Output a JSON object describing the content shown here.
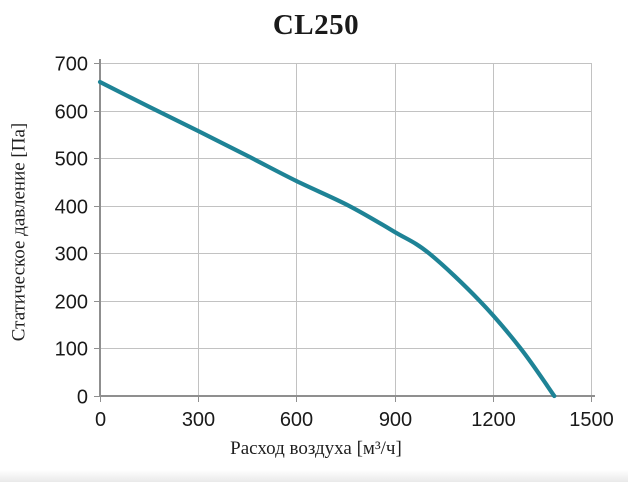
{
  "chart_data": {
    "type": "line",
    "title": "CL250",
    "xlabel": "Расход воздуха [м³/ч]",
    "ylabel": "Статическое давление [Па]",
    "xlim": [
      0,
      1500
    ],
    "ylim": [
      0,
      700
    ],
    "x_ticks": [
      0,
      300,
      600,
      900,
      1200,
      1500
    ],
    "y_ticks": [
      0,
      100,
      200,
      300,
      400,
      500,
      600,
      700
    ],
    "grid": true,
    "legend_position": "none",
    "series": [
      {
        "name": "CL250",
        "color": "#1e8396",
        "points": [
          [
            0,
            660
          ],
          [
            150,
            608
          ],
          [
            300,
            557
          ],
          [
            450,
            505
          ],
          [
            600,
            452
          ],
          [
            760,
            400
          ],
          [
            900,
            345
          ],
          [
            1005,
            300
          ],
          [
            1160,
            200
          ],
          [
            1285,
            100
          ],
          [
            1388,
            0
          ]
        ]
      }
    ],
    "colors": {
      "gridline": "#c2c2c2",
      "axis": "#8f8f8f",
      "text": "#1a1a1a",
      "background": "#ffffff"
    }
  }
}
